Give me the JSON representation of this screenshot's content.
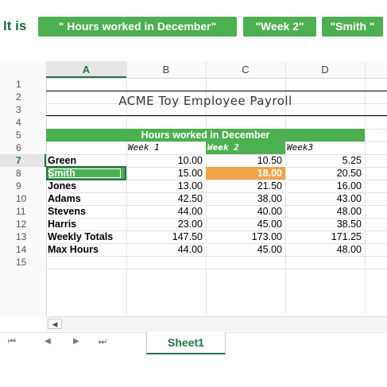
{
  "caption": {
    "lead": "It is",
    "tags": [
      "\" Hours worked in December\"",
      "\"Week 2\"",
      "\"Smith \""
    ]
  },
  "sheet": {
    "columns": [
      "A",
      "B",
      "C",
      "D"
    ],
    "row_numbers": [
      "1",
      "2",
      "3",
      "4",
      "5",
      "6",
      "7",
      "8",
      "9",
      "10",
      "11",
      "12",
      "13",
      "14",
      "15"
    ],
    "title": "ACME Toy Employee Payroll",
    "merged_header": "Hours worked in December",
    "week_headers": [
      "Week 1",
      "Week 2",
      "Week3"
    ],
    "rows": [
      {
        "name": "Green",
        "values": [
          "10.00",
          "10.50",
          "5.25"
        ]
      },
      {
        "name": "Smith",
        "values": [
          "15.00",
          "18.00",
          "20.50"
        ]
      },
      {
        "name": "Jones",
        "values": [
          "13.00",
          "21.50",
          "16.00"
        ]
      },
      {
        "name": "Adams",
        "values": [
          "42.50",
          "38.00",
          "43.00"
        ]
      },
      {
        "name": "Stevens",
        "values": [
          "44.00",
          "40.00",
          "48.00"
        ]
      },
      {
        "name": "Harris",
        "values": [
          "23.00",
          "45.00",
          "38.50"
        ]
      }
    ],
    "summary": [
      {
        "name": "Weekly Totals",
        "values": [
          "147.50",
          "173.00",
          "171.25"
        ]
      },
      {
        "name": "Max Hours",
        "values": [
          "44.00",
          "45.00",
          "48.00"
        ]
      }
    ],
    "tab_label": "Sheet1"
  },
  "colors": {
    "accent": "#4caf50",
    "highlight": "#f0a54a"
  },
  "icons": [
    "first-sheet-icon",
    "prev-sheet-icon",
    "next-sheet-icon",
    "last-sheet-icon",
    "scroll-left-icon"
  ]
}
